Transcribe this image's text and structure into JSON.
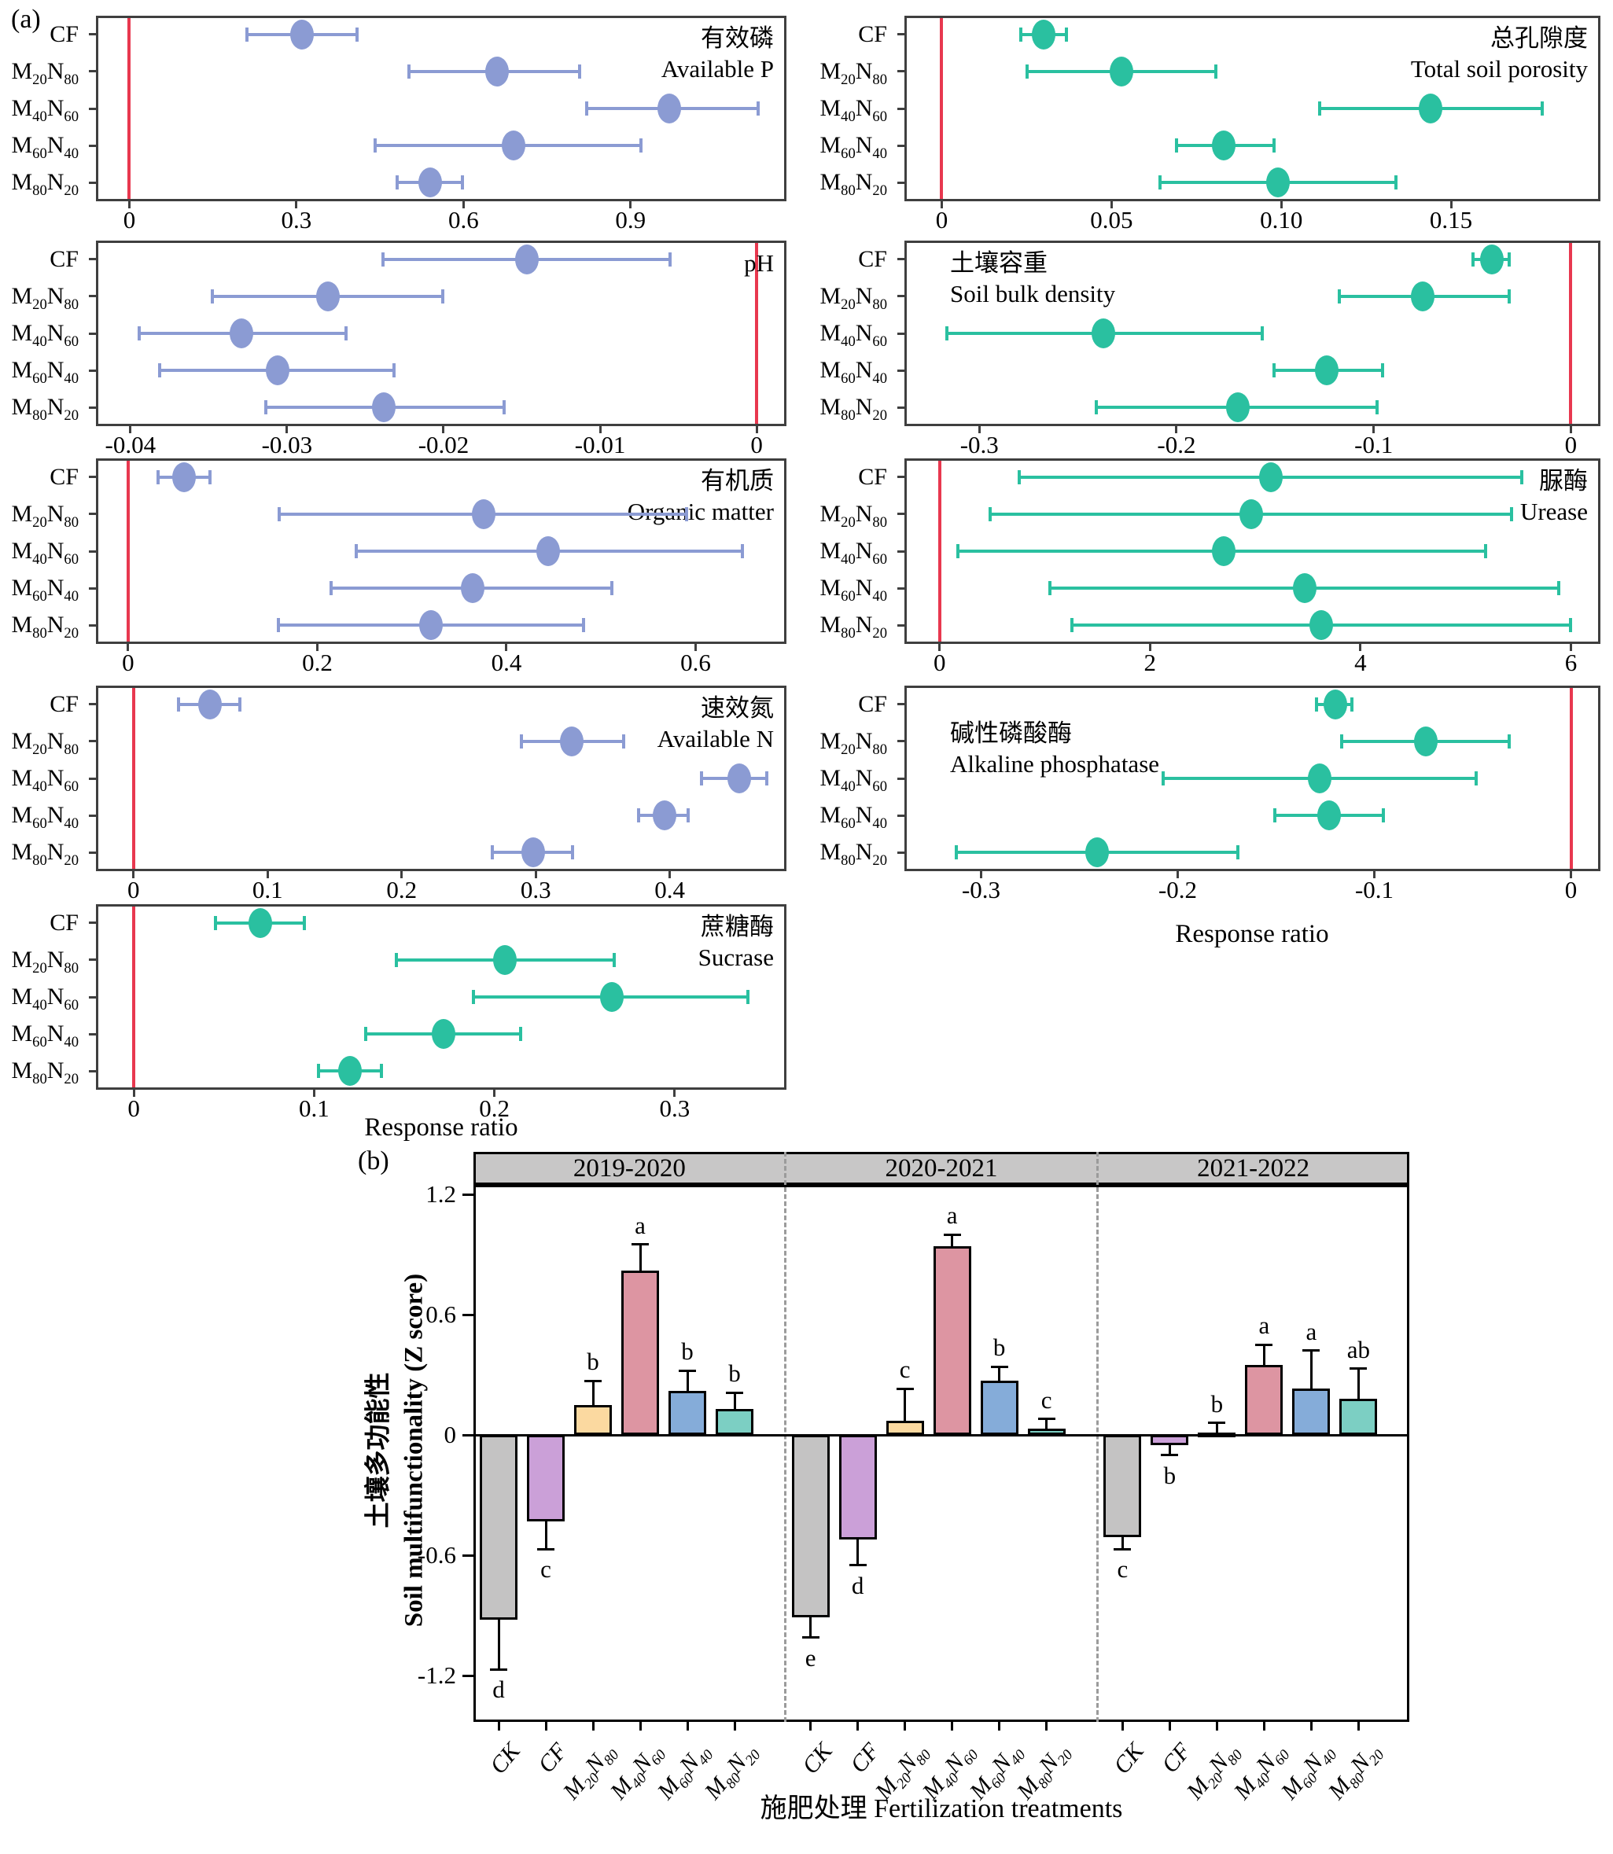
{
  "labels": {
    "panel_a": "(a)",
    "panel_b": "(b)"
  },
  "colors": {
    "forest_blue": "#8B9BD3",
    "forest_green": "#2AC0A0",
    "zero_line_red": "#E8384F",
    "spine": "#3f3f3f",
    "band_gray": "#C8C7C7",
    "dash_gray": "#9b9b9b"
  },
  "chart_data": [
    {
      "type": "forest",
      "id": "available_p",
      "title_cn": "有效磷",
      "title_en": "Available P",
      "title_pos": "right",
      "color": "#8B9BD3",
      "xlim": [
        -0.06,
        1.18
      ],
      "xticks": [
        {
          "v": 0,
          "label": "0"
        },
        {
          "v": 0.3,
          "label": "0.3"
        },
        {
          "v": 0.6,
          "label": "0.6"
        },
        {
          "v": 0.9,
          "label": "0.9"
        }
      ],
      "points": [
        {
          "cat": "CF",
          "value": 0.31,
          "lo": 0.21,
          "hi": 0.41
        },
        {
          "cat": "M20N80",
          "value": 0.66,
          "lo": 0.5,
          "hi": 0.81
        },
        {
          "cat": "M40N60",
          "value": 0.97,
          "lo": 0.82,
          "hi": 1.13
        },
        {
          "cat": "M60N40",
          "value": 0.69,
          "lo": 0.44,
          "hi": 0.92
        },
        {
          "cat": "M80N20",
          "value": 0.54,
          "lo": 0.48,
          "hi": 0.6
        }
      ]
    },
    {
      "type": "forest",
      "id": "ph",
      "title_cn": "",
      "title_en": "pH",
      "title_pos": "right",
      "color": "#8B9BD3",
      "xlim": [
        -0.0422,
        0.0019
      ],
      "xticks": [
        {
          "v": -0.04,
          "label": "-0.04"
        },
        {
          "v": -0.03,
          "label": "-0.03"
        },
        {
          "v": -0.02,
          "label": "-0.02"
        },
        {
          "v": -0.01,
          "label": "-0.01"
        },
        {
          "v": 0,
          "label": "0"
        }
      ],
      "points": [
        {
          "cat": "CF",
          "value": -0.0147,
          "lo": -0.0239,
          "hi": -0.0055
        },
        {
          "cat": "M20N80",
          "value": -0.0274,
          "lo": -0.0348,
          "hi": -0.02
        },
        {
          "cat": "M40N60",
          "value": -0.0329,
          "lo": -0.0395,
          "hi": -0.0262
        },
        {
          "cat": "M60N40",
          "value": -0.0306,
          "lo": -0.0382,
          "hi": -0.0231
        },
        {
          "cat": "M80N20",
          "value": -0.0238,
          "lo": -0.0314,
          "hi": -0.0161
        }
      ]
    },
    {
      "type": "forest",
      "id": "organic_matter",
      "title_cn": "有机质",
      "title_en": "Organic matter",
      "title_pos": "right",
      "color": "#8B9BD3",
      "xlim": [
        -0.034,
        0.696
      ],
      "xticks": [
        {
          "v": 0,
          "label": "0"
        },
        {
          "v": 0.2,
          "label": "0.2"
        },
        {
          "v": 0.4,
          "label": "0.4"
        },
        {
          "v": 0.6,
          "label": "0.6"
        }
      ],
      "points": [
        {
          "cat": "CF",
          "value": 0.059,
          "lo": 0.031,
          "hi": 0.087
        },
        {
          "cat": "M20N80",
          "value": 0.376,
          "lo": 0.159,
          "hi": 0.591
        },
        {
          "cat": "M40N60",
          "value": 0.444,
          "lo": 0.24,
          "hi": 0.65
        },
        {
          "cat": "M60N40",
          "value": 0.364,
          "lo": 0.214,
          "hi": 0.512
        },
        {
          "cat": "M80N20",
          "value": 0.32,
          "lo": 0.158,
          "hi": 0.482
        }
      ]
    },
    {
      "type": "forest",
      "id": "available_n",
      "title_cn": "速效氮",
      "title_en": "Available N",
      "title_pos": "right",
      "color": "#8B9BD3",
      "xlim": [
        -0.028,
        0.487
      ],
      "xticks": [
        {
          "v": 0,
          "label": "0"
        },
        {
          "v": 0.1,
          "label": "0.1"
        },
        {
          "v": 0.2,
          "label": "0.2"
        },
        {
          "v": 0.3,
          "label": "0.3"
        },
        {
          "v": 0.4,
          "label": "0.4"
        }
      ],
      "points": [
        {
          "cat": "CF",
          "value": 0.057,
          "lo": 0.033,
          "hi": 0.08
        },
        {
          "cat": "M20N80",
          "value": 0.327,
          "lo": 0.289,
          "hi": 0.366
        },
        {
          "cat": "M40N60",
          "value": 0.452,
          "lo": 0.423,
          "hi": 0.473
        },
        {
          "cat": "M60N40",
          "value": 0.396,
          "lo": 0.376,
          "hi": 0.414
        },
        {
          "cat": "M80N20",
          "value": 0.298,
          "lo": 0.267,
          "hi": 0.328
        }
      ]
    },
    {
      "type": "forest",
      "id": "sucrase",
      "title_cn": "蔗糖酶",
      "title_en": "Sucrase",
      "title_pos": "right",
      "color": "#2AC0A0",
      "xlim": [
        -0.021,
        0.362
      ],
      "xlabel": "Response ratio",
      "xticks": [
        {
          "v": 0,
          "label": "0"
        },
        {
          "v": 0.1,
          "label": "0.1"
        },
        {
          "v": 0.2,
          "label": "0.2"
        },
        {
          "v": 0.3,
          "label": "0.3"
        }
      ],
      "points": [
        {
          "cat": "CF",
          "value": 0.07,
          "lo": 0.045,
          "hi": 0.095
        },
        {
          "cat": "M20N80",
          "value": 0.206,
          "lo": 0.145,
          "hi": 0.267
        },
        {
          "cat": "M40N60",
          "value": 0.265,
          "lo": 0.188,
          "hi": 0.341
        },
        {
          "cat": "M60N40",
          "value": 0.172,
          "lo": 0.128,
          "hi": 0.215
        },
        {
          "cat": "M80N20",
          "value": 0.12,
          "lo": 0.102,
          "hi": 0.138
        }
      ]
    },
    {
      "type": "forest",
      "id": "total_soil_porosity",
      "title_cn": "总孔隙度",
      "title_en": "Total soil porosity",
      "title_pos": "right",
      "color": "#2AC0A0",
      "xlim": [
        -0.011,
        0.194
      ],
      "xticks": [
        {
          "v": 0,
          "label": "0"
        },
        {
          "v": 0.05,
          "label": "0.05"
        },
        {
          "v": 0.1,
          "label": "0.10"
        },
        {
          "v": 0.15,
          "label": "0.15"
        }
      ],
      "points": [
        {
          "cat": "CF",
          "value": 0.03,
          "lo": 0.023,
          "hi": 0.037
        },
        {
          "cat": "M20N80",
          "value": 0.053,
          "lo": 0.025,
          "hi": 0.081
        },
        {
          "cat": "M40N60",
          "value": 0.144,
          "lo": 0.111,
          "hi": 0.177
        },
        {
          "cat": "M60N40",
          "value": 0.083,
          "lo": 0.069,
          "hi": 0.098
        },
        {
          "cat": "M80N20",
          "value": 0.099,
          "lo": 0.064,
          "hi": 0.134
        }
      ]
    },
    {
      "type": "forest",
      "id": "soil_bulk_density",
      "title_cn": "土壤容重",
      "title_en": "Soil bulk density",
      "title_pos": "left",
      "title_top": 10,
      "color": "#2AC0A0",
      "xlim": [
        -0.338,
        0.015
      ],
      "xticks": [
        {
          "v": -0.3,
          "label": "-0.3"
        },
        {
          "v": -0.2,
          "label": "-0.2"
        },
        {
          "v": -0.1,
          "label": "-0.1"
        },
        {
          "v": 0,
          "label": "0"
        }
      ],
      "points": [
        {
          "cat": "CF",
          "value": -0.04,
          "lo": -0.05,
          "hi": -0.031
        },
        {
          "cat": "M20N80",
          "value": -0.075,
          "lo": -0.118,
          "hi": -0.031
        },
        {
          "cat": "M40N60",
          "value": -0.237,
          "lo": -0.317,
          "hi": -0.156
        },
        {
          "cat": "M60N40",
          "value": -0.124,
          "lo": -0.151,
          "hi": -0.095
        },
        {
          "cat": "M80N20",
          "value": -0.169,
          "lo": -0.241,
          "hi": -0.098
        }
      ]
    },
    {
      "type": "forest",
      "id": "urease",
      "title_cn": "脲酶",
      "title_en": "Urease",
      "title_pos": "right",
      "color": "#2AC0A0",
      "xlim": [
        -0.334,
        6.28
      ],
      "xticks": [
        {
          "v": 0,
          "label": "0"
        },
        {
          "v": 2,
          "label": "2"
        },
        {
          "v": 4,
          "label": "4"
        },
        {
          "v": 6,
          "label": "6"
        }
      ],
      "points": [
        {
          "cat": "CF",
          "value": 3.15,
          "lo": 0.75,
          "hi": 5.54
        },
        {
          "cat": "M20N80",
          "value": 2.96,
          "lo": 0.47,
          "hi": 5.44
        },
        {
          "cat": "M40N60",
          "value": 2.7,
          "lo": 0.17,
          "hi": 5.2
        },
        {
          "cat": "M60N40",
          "value": 3.47,
          "lo": 1.04,
          "hi": 5.89
        },
        {
          "cat": "M80N20",
          "value": 3.63,
          "lo": 1.25,
          "hi": 6.0
        }
      ]
    },
    {
      "type": "forest",
      "id": "alkaline_phosphatase",
      "title_cn": "碱性磷酸酶",
      "title_en": "Alkaline phosphatase",
      "title_pos": "left",
      "title_top": 42,
      "color": "#2AC0A0",
      "xlim": [
        -0.339,
        0.015
      ],
      "xlabel": "Response ratio",
      "xticks": [
        {
          "v": -0.3,
          "label": "-0.3"
        },
        {
          "v": -0.2,
          "label": "-0.2"
        },
        {
          "v": -0.1,
          "label": "-0.1"
        },
        {
          "v": 0,
          "label": "0"
        }
      ],
      "points": [
        {
          "cat": "CF",
          "value": -0.12,
          "lo": -0.13,
          "hi": -0.111
        },
        {
          "cat": "M20N80",
          "value": -0.074,
          "lo": -0.117,
          "hi": -0.031
        },
        {
          "cat": "M40N60",
          "value": -0.128,
          "lo": -0.208,
          "hi": -0.048
        },
        {
          "cat": "M60N40",
          "value": -0.123,
          "lo": -0.151,
          "hi": -0.095
        },
        {
          "cat": "M80N20",
          "value": -0.241,
          "lo": -0.313,
          "hi": -0.169
        }
      ]
    },
    {
      "type": "bar",
      "id": "soil_multifunctionality",
      "ylabel_cn": "土壤多功能性",
      "ylabel_en": "Soil multifunctionality (Z score)",
      "xlabel": "施肥处理 Fertilization treatments",
      "yticks": [
        {
          "v": 1.2,
          "label": "1.2"
        },
        {
          "v": 0.6,
          "label": "0.6"
        },
        {
          "v": 0,
          "label": "0"
        },
        {
          "v": -0.6,
          "label": "-0.6"
        },
        {
          "v": -1.2,
          "label": "-1.2"
        }
      ],
      "treatments": [
        "CK",
        "CF",
        "M20N80",
        "M40N60",
        "M60N40",
        "M80N20"
      ],
      "treatment_colors": [
        "#C4C3C3",
        "#CBA0D8",
        "#FBD9A0",
        "#DD95A2",
        "#85ACD9",
        "#7CCFC3"
      ],
      "groups": [
        {
          "year": "2019-2020",
          "bars": [
            {
              "treatment": "CK",
              "value": -0.92,
              "err": 0.25,
              "letter": "d"
            },
            {
              "treatment": "CF",
              "value": -0.43,
              "err": 0.14,
              "letter": "c"
            },
            {
              "treatment": "M20N80",
              "value": 0.15,
              "err": 0.12,
              "letter": "b"
            },
            {
              "treatment": "M40N60",
              "value": 0.82,
              "err": 0.13,
              "letter": "a"
            },
            {
              "treatment": "M60N40",
              "value": 0.22,
              "err": 0.1,
              "letter": "b"
            },
            {
              "treatment": "M80N20",
              "value": 0.13,
              "err": 0.08,
              "letter": "b"
            }
          ]
        },
        {
          "year": "2020-2021",
          "bars": [
            {
              "treatment": "CK",
              "value": -0.91,
              "err": 0.1,
              "letter": "e"
            },
            {
              "treatment": "CF",
              "value": -0.52,
              "err": 0.13,
              "letter": "d"
            },
            {
              "treatment": "M20N80",
              "value": 0.07,
              "err": 0.16,
              "letter": "c"
            },
            {
              "treatment": "M40N60",
              "value": 0.94,
              "err": 0.06,
              "letter": "a"
            },
            {
              "treatment": "M60N40",
              "value": 0.27,
              "err": 0.07,
              "letter": "b"
            },
            {
              "treatment": "M80N20",
              "value": 0.03,
              "err": 0.05,
              "letter": "c"
            }
          ]
        },
        {
          "year": "2021-2022",
          "bars": [
            {
              "treatment": "CK",
              "value": -0.51,
              "err": 0.06,
              "letter": "c"
            },
            {
              "treatment": "CF",
              "value": -0.05,
              "err": 0.05,
              "letter": "b"
            },
            {
              "treatment": "M20N80",
              "value": 0.01,
              "err": 0.05,
              "letter": "b"
            },
            {
              "treatment": "M40N60",
              "value": 0.35,
              "err": 0.1,
              "letter": "a"
            },
            {
              "treatment": "M60N40",
              "value": 0.23,
              "err": 0.19,
              "letter": "a"
            },
            {
              "treatment": "M80N20",
              "value": 0.18,
              "err": 0.15,
              "letter": "ab"
            }
          ]
        }
      ]
    }
  ]
}
